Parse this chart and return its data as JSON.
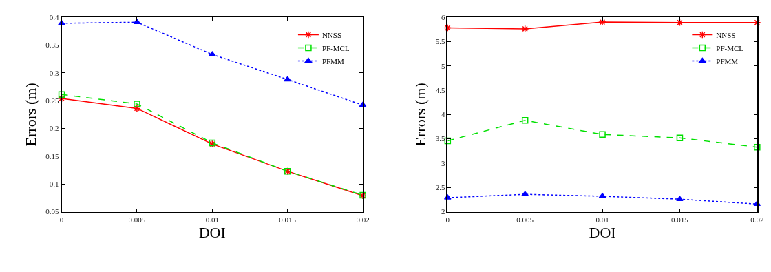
{
  "chart_data": [
    {
      "type": "line",
      "xlabel": "DOI",
      "ylabel": "Errors (m)",
      "x": [
        0,
        0.005,
        0.01,
        0.015,
        0.02
      ],
      "xlim": [
        0,
        0.02
      ],
      "xticks": [
        0,
        0.005,
        0.01,
        0.015,
        0.02
      ],
      "ylim": [
        0.05,
        0.4
      ],
      "yticks": [
        0.05,
        0.1,
        0.15,
        0.2,
        0.25,
        0.3,
        0.35,
        0.4
      ],
      "legend": "top right",
      "series": [
        {
          "name": "NNSS",
          "color": "#ff0000",
          "marker": "cross",
          "line_style": "solid",
          "values": [
            0.254,
            0.236,
            0.172,
            0.123,
            0.079
          ]
        },
        {
          "name": "PF-MCL",
          "color": "#00e000",
          "marker": "square",
          "line_style": "dashed",
          "values": [
            0.261,
            0.244,
            0.174,
            0.123,
            0.08
          ]
        },
        {
          "name": "PFMM",
          "color": "#0000ff",
          "marker": "triangle",
          "line_style": "dotted",
          "values": [
            0.389,
            0.391,
            0.333,
            0.288,
            0.242
          ]
        }
      ]
    },
    {
      "type": "line",
      "xlabel": "DOI",
      "ylabel": "Errors (m)",
      "x": [
        0,
        0.005,
        0.01,
        0.015,
        0.02
      ],
      "xlim": [
        0,
        0.02
      ],
      "xticks": [
        0,
        0.005,
        0.01,
        0.015,
        0.02
      ],
      "ylim": [
        2,
        6
      ],
      "yticks": [
        2,
        2.5,
        3,
        3.5,
        4,
        4.5,
        5,
        5.5,
        6
      ],
      "legend": "top right",
      "series": [
        {
          "name": "NNSS",
          "color": "#ff0000",
          "marker": "cross",
          "line_style": "solid",
          "values": [
            5.78,
            5.76,
            5.9,
            5.89,
            5.89
          ]
        },
        {
          "name": "PF-MCL",
          "color": "#00e000",
          "marker": "square",
          "line_style": "dashed",
          "values": [
            3.46,
            3.88,
            3.59,
            3.52,
            3.33
          ]
        },
        {
          "name": "PFMM",
          "color": "#0000ff",
          "marker": "triangle",
          "line_style": "dotted",
          "values": [
            2.29,
            2.36,
            2.32,
            2.26,
            2.16
          ]
        }
      ]
    }
  ]
}
